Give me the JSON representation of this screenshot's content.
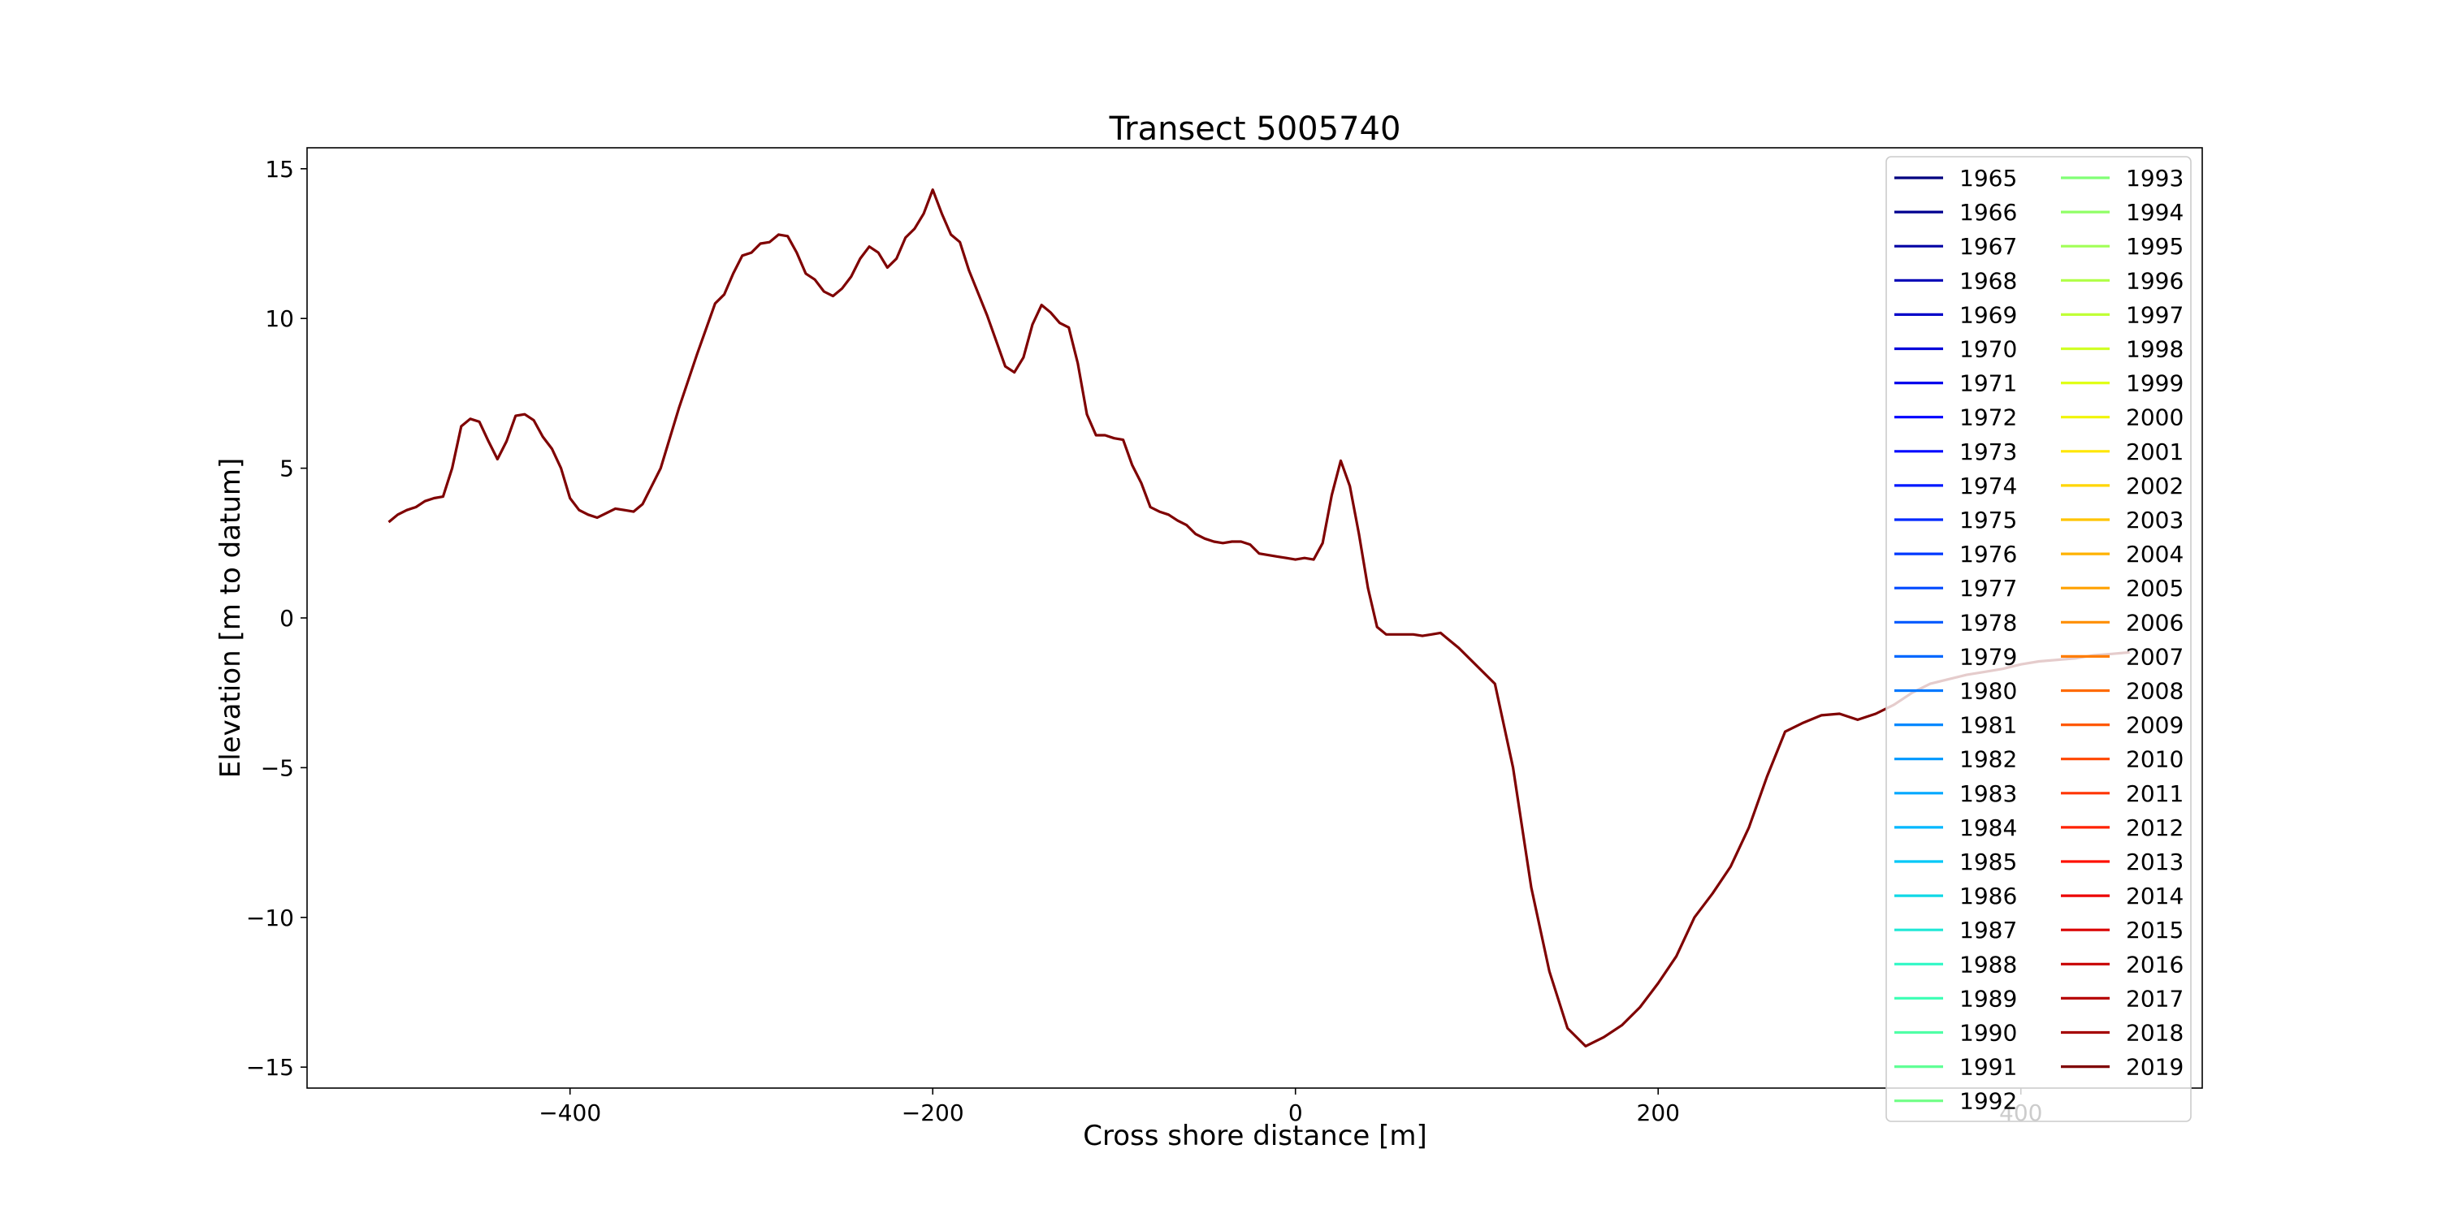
{
  "chart_data": {
    "type": "line",
    "title": "Transect 5005740",
    "xlabel": "Cross shore distance [m]",
    "ylabel": "Elevation [m to datum]",
    "xlim": [
      -545,
      500
    ],
    "ylim": [
      -15.7,
      15.7
    ],
    "xticks": [
      -400,
      -200,
      0,
      200,
      400
    ],
    "yticks": [
      -15,
      -10,
      -5,
      0,
      5,
      10,
      15
    ],
    "xtick_labels": [
      "−400",
      "−200",
      "0",
      "200",
      "400"
    ],
    "ytick_labels": [
      "−15",
      "−10",
      "−5",
      "0",
      "5",
      "10",
      "15"
    ],
    "grid": false,
    "legend": {
      "placement": "right",
      "columns": 2
    },
    "series_colors": [
      "#00007f",
      "#000090",
      "#0000a4",
      "#0000b6",
      "#0000c8",
      "#0000da",
      "#0000ec",
      "#0000ff",
      "#0008ff",
      "#0018ff",
      "#0028ff",
      "#0038ff",
      "#0048ff",
      "#0058ff",
      "#0068ff",
      "#0078ff",
      "#0088ff",
      "#0098ff",
      "#00a8ff",
      "#00b8ff",
      "#00c8f8",
      "#10d8e6",
      "#20e8d6",
      "#30f8c6",
      "#40ffb6",
      "#50ffa6",
      "#60ff96",
      "#70ff86",
      "#80ff76",
      "#90ff66",
      "#a0ff56",
      "#b0ff46",
      "#c0ff36",
      "#d0ff26",
      "#e0ff16",
      "#f0f406",
      "#ffe600",
      "#ffd600",
      "#ffc400",
      "#ffb200",
      "#ffa000",
      "#ff8e00",
      "#ff7c00",
      "#ff6a00",
      "#ff5800",
      "#ff4600",
      "#ff3400",
      "#ff2200",
      "#ff1000",
      "#ec0000",
      "#da0000",
      "#c80000",
      "#b60000",
      "#a40000",
      "#7f0000"
    ],
    "series": [
      {
        "name": "1965"
      },
      {
        "name": "1966"
      },
      {
        "name": "1967"
      },
      {
        "name": "1968"
      },
      {
        "name": "1969"
      },
      {
        "name": "1970"
      },
      {
        "name": "1971"
      },
      {
        "name": "1972"
      },
      {
        "name": "1973"
      },
      {
        "name": "1974"
      },
      {
        "name": "1975"
      },
      {
        "name": "1976"
      },
      {
        "name": "1977"
      },
      {
        "name": "1978"
      },
      {
        "name": "1979"
      },
      {
        "name": "1980"
      },
      {
        "name": "1981"
      },
      {
        "name": "1982"
      },
      {
        "name": "1983"
      },
      {
        "name": "1984"
      },
      {
        "name": "1985"
      },
      {
        "name": "1986"
      },
      {
        "name": "1987"
      },
      {
        "name": "1988"
      },
      {
        "name": "1989"
      },
      {
        "name": "1990"
      },
      {
        "name": "1991"
      },
      {
        "name": "1992"
      },
      {
        "name": "1993"
      },
      {
        "name": "1994"
      },
      {
        "name": "1995"
      },
      {
        "name": "1996"
      },
      {
        "name": "1997"
      },
      {
        "name": "1998"
      },
      {
        "name": "1999"
      },
      {
        "name": "2000"
      },
      {
        "name": "2001"
      },
      {
        "name": "2002"
      },
      {
        "name": "2003"
      },
      {
        "name": "2004"
      },
      {
        "name": "2005"
      },
      {
        "name": "2006"
      },
      {
        "name": "2007"
      },
      {
        "name": "2008"
      },
      {
        "name": "2009"
      },
      {
        "name": "2010"
      },
      {
        "name": "2011"
      },
      {
        "name": "2012"
      },
      {
        "name": "2013"
      },
      {
        "name": "2014"
      },
      {
        "name": "2015"
      },
      {
        "name": "2016"
      },
      {
        "name": "2017"
      },
      {
        "name": "2018"
      },
      {
        "name": "2019",
        "x": [
          -500,
          -495,
          -490,
          -485,
          -480,
          -475,
          -470,
          -465,
          -460,
          -455,
          -450,
          -445,
          -440,
          -435,
          -430,
          -425,
          -420,
          -415,
          -410,
          -405,
          -400,
          -395,
          -390,
          -385,
          -380,
          -375,
          -370,
          -365,
          -360,
          -355,
          -350,
          -340,
          -330,
          -320,
          -315,
          -310,
          -305,
          -300,
          -295,
          -290,
          -285,
          -280,
          -275,
          -270,
          -265,
          -260,
          -255,
          -250,
          -245,
          -240,
          -235,
          -230,
          -225,
          -220,
          -215,
          -210,
          -205,
          -200,
          -195,
          -190,
          -185,
          -180,
          -170,
          -160,
          -155,
          -150,
          -145,
          -140,
          -135,
          -130,
          -125,
          -120,
          -115,
          -110,
          -105,
          -100,
          -95,
          -90,
          -85,
          -80,
          -75,
          -70,
          -65,
          -60,
          -55,
          -50,
          -45,
          -40,
          -35,
          -30,
          -25,
          -20,
          -15,
          -10,
          -5,
          0,
          5,
          10,
          15,
          20,
          25,
          30,
          35,
          40,
          45,
          50,
          55,
          60,
          65,
          70,
          75,
          80,
          90,
          100,
          110,
          120,
          130,
          140,
          150,
          160,
          170,
          180,
          190,
          200,
          210,
          220,
          230,
          240,
          250,
          260,
          270,
          280,
          290,
          300,
          310,
          320,
          330,
          340,
          350,
          360,
          370,
          380,
          390,
          400,
          410,
          420,
          430,
          440,
          450,
          460
        ],
        "y": [
          3.2,
          3.45,
          3.6,
          3.7,
          3.9,
          4.0,
          4.05,
          5.0,
          6.4,
          6.65,
          6.55,
          5.9,
          5.3,
          5.9,
          6.75,
          6.8,
          6.6,
          6.05,
          5.65,
          5.0,
          4.0,
          3.6,
          3.45,
          3.35,
          3.5,
          3.65,
          3.6,
          3.55,
          3.8,
          4.4,
          5.0,
          7.0,
          8.8,
          10.5,
          10.8,
          11.5,
          12.1,
          12.2,
          12.5,
          12.55,
          12.8,
          12.75,
          12.2,
          11.5,
          11.3,
          10.9,
          10.75,
          11.0,
          11.4,
          12.0,
          12.4,
          12.2,
          11.7,
          12.0,
          12.7,
          13.0,
          13.5,
          14.3,
          13.5,
          12.8,
          12.55,
          11.6,
          10.1,
          8.4,
          8.2,
          8.7,
          9.8,
          10.45,
          10.2,
          9.85,
          9.7,
          8.5,
          6.8,
          6.1,
          6.1,
          6.0,
          5.95,
          5.1,
          4.5,
          3.7,
          3.55,
          3.45,
          3.25,
          3.1,
          2.8,
          2.65,
          2.55,
          2.5,
          2.55,
          2.55,
          2.45,
          2.15,
          2.1,
          2.05,
          2.0,
          1.95,
          2.0,
          1.95,
          2.5,
          4.1,
          5.25,
          4.4,
          2.8,
          1.0,
          -0.3,
          -0.55,
          -0.55,
          -0.55,
          -0.55,
          -0.6,
          -0.55,
          -0.5,
          -1.0,
          -1.6,
          -2.2,
          -5.0,
          -9.0,
          -11.8,
          -13.7,
          -14.3,
          -14.0,
          -13.6,
          -13.0,
          -12.2,
          -11.3,
          -10.0,
          -9.2,
          -8.3,
          -7.0,
          -5.3,
          -3.8,
          -3.5,
          -3.25,
          -3.2,
          -3.4,
          -3.2,
          -2.9,
          -2.5,
          -2.2,
          -2.05,
          -1.9,
          -1.8,
          -1.7,
          -1.55,
          -1.45,
          -1.4,
          -1.35,
          -1.25,
          -1.2,
          -1.15
        ]
      }
    ]
  }
}
